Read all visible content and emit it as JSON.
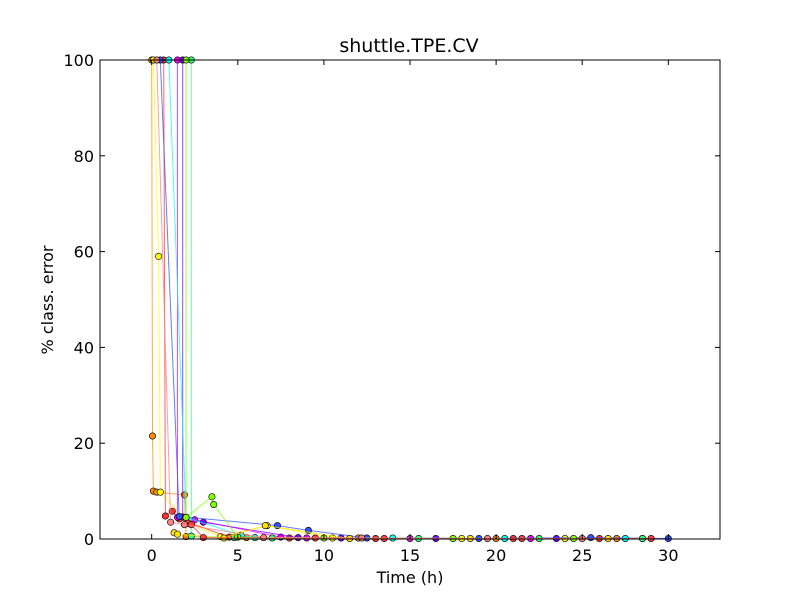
{
  "chart_data": {
    "type": "scatter",
    "title": "shuttle.TPE.CV",
    "xlabel": "Time (h)",
    "ylabel": "% class. error",
    "xlim": [
      -3,
      33
    ],
    "ylim": [
      0,
      100
    ],
    "xticks": [
      0,
      5,
      10,
      15,
      20,
      25,
      30
    ],
    "yticks": [
      0,
      20,
      40,
      60,
      80,
      100
    ],
    "grid": false,
    "series": [
      {
        "color": "#ff8c00",
        "points": [
          [
            0.0,
            100
          ],
          [
            0.05,
            21.5
          ],
          [
            0.1,
            10
          ],
          [
            0.3,
            9.8
          ],
          [
            1.9,
            9.2
          ],
          [
            2.0,
            0.5
          ],
          [
            5.5,
            0.3
          ],
          [
            12.0,
            0.2
          ],
          [
            20.0,
            0.1
          ],
          [
            27.0,
            0.1
          ]
        ]
      },
      {
        "color": "#ffff00",
        "points": [
          [
            0.1,
            100
          ],
          [
            0.4,
            59
          ],
          [
            0.5,
            9.8
          ],
          [
            2.2,
            3.2
          ],
          [
            4.0,
            0.5
          ],
          [
            6.7,
            2.8
          ],
          [
            10.5,
            0.2
          ],
          [
            18.0,
            0.1
          ],
          [
            24.0,
            0.1
          ]
        ]
      },
      {
        "color": "#ff3030",
        "points": [
          [
            0.7,
            100
          ],
          [
            0.8,
            4.8
          ],
          [
            1.2,
            5.8
          ],
          [
            1.6,
            4.2
          ],
          [
            4.5,
            0.4
          ],
          [
            8.0,
            0.2
          ],
          [
            13.0,
            0.1
          ],
          [
            21.0,
            0.1
          ],
          [
            26.0,
            0.1
          ]
        ]
      },
      {
        "color": "#ff00ff",
        "points": [
          [
            1.5,
            100
          ],
          [
            1.5,
            4.5
          ],
          [
            2.5,
            4.0
          ],
          [
            7.5,
            0.4
          ],
          [
            9.0,
            0.2
          ],
          [
            15.0,
            0.1
          ],
          [
            22.0,
            0.1
          ],
          [
            28.5,
            0.1
          ]
        ]
      },
      {
        "color": "#8000ff",
        "points": [
          [
            1.8,
            100
          ],
          [
            1.8,
            4.6
          ],
          [
            3.0,
            3.5
          ],
          [
            8.5,
            0.3
          ],
          [
            11.0,
            0.2
          ],
          [
            16.5,
            0.1
          ],
          [
            23.5,
            0.1
          ]
        ]
      },
      {
        "color": "#3050ff",
        "points": [
          [
            0.5,
            100
          ],
          [
            1.6,
            4.7
          ],
          [
            7.3,
            2.8
          ],
          [
            9.1,
            1.8
          ],
          [
            12.5,
            0.2
          ],
          [
            19.0,
            0.1
          ],
          [
            25.5,
            0.3
          ],
          [
            30.0,
            0.1
          ]
        ]
      },
      {
        "color": "#00ffff",
        "points": [
          [
            1.0,
            100
          ],
          [
            2.0,
            4.5
          ],
          [
            5.2,
            0.8
          ],
          [
            6.0,
            0.3
          ],
          [
            14.0,
            0.2
          ],
          [
            20.5,
            0.1
          ],
          [
            27.5,
            0.1
          ]
        ]
      },
      {
        "color": "#30ff80",
        "points": [
          [
            2.3,
            100
          ],
          [
            2.3,
            0.6
          ],
          [
            4.8,
            0.3
          ],
          [
            7.0,
            0.2
          ],
          [
            15.5,
            0.1
          ],
          [
            22.5,
            0.1
          ],
          [
            28.5,
            0.1
          ]
        ]
      },
      {
        "color": "#80ff00",
        "points": [
          [
            2.0,
            100
          ],
          [
            2.0,
            4.5
          ],
          [
            3.5,
            8.8
          ],
          [
            3.6,
            7.2
          ],
          [
            5.0,
            0.4
          ],
          [
            10.0,
            0.2
          ],
          [
            17.5,
            0.1
          ],
          [
            24.5,
            0.1
          ]
        ]
      },
      {
        "color": "#ffe000",
        "points": [
          [
            1.3,
            1.3
          ],
          [
            1.5,
            1.0
          ],
          [
            4.2,
            0.2
          ],
          [
            6.6,
            2.8
          ],
          [
            11.5,
            0.1
          ],
          [
            18.5,
            0.1
          ],
          [
            26.5,
            0.1
          ]
        ]
      },
      {
        "color": "#ff4040",
        "points": [
          [
            2.1,
            3.3
          ],
          [
            2.3,
            3.0
          ],
          [
            3.0,
            0.3
          ],
          [
            9.5,
            0.2
          ],
          [
            13.5,
            0.1
          ],
          [
            21.5,
            0.1
          ],
          [
            29.0,
            0.1
          ]
        ]
      },
      {
        "color": "#ff8080",
        "points": [
          [
            0.3,
            100
          ],
          [
            1.1,
            3.5
          ],
          [
            1.9,
            3.0
          ],
          [
            6.5,
            0.3
          ],
          [
            12.2,
            0.2
          ],
          [
            19.5,
            0.1
          ],
          [
            25.0,
            0.1
          ]
        ]
      }
    ]
  }
}
